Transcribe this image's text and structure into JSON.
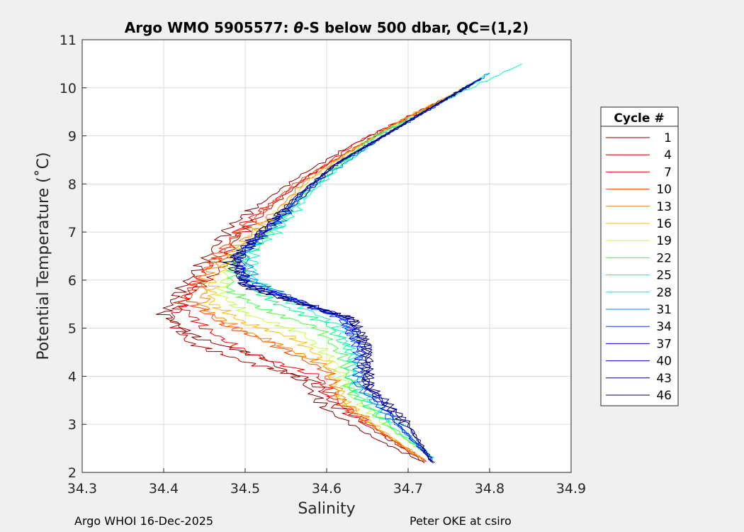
{
  "chart_data": {
    "type": "line",
    "title_prefix": "Argo WMO 5905577: ",
    "title_theta": "θ",
    "title_suffix": "-S below 500 dbar,  QC=(1,2)",
    "xlabel": "Salinity",
    "ylabel": "Potential Temperature (˚C)",
    "xlim": [
      34.3,
      34.9
    ],
    "ylim": [
      2,
      11
    ],
    "xticks": [
      "34.3",
      "34.4",
      "34.5",
      "34.6",
      "34.7",
      "34.8",
      "34.9"
    ],
    "yticks": [
      "2",
      "3",
      "4",
      "5",
      "6",
      "7",
      "8",
      "9",
      "10",
      "11"
    ],
    "grid": true,
    "legend": {
      "title": "Cycle #",
      "position": "outside-right",
      "entries": [
        "1",
        "4",
        "7",
        "10",
        "13",
        "16",
        "19",
        "22",
        "25",
        "28",
        "31",
        "34",
        "37",
        "40",
        "43",
        "46"
      ],
      "colors": [
        "#800000",
        "#bf0000",
        "#ff0000",
        "#ff4000",
        "#ff8000",
        "#ffbf00",
        "#bfff40",
        "#40ff40",
        "#00ff80",
        "#00ffbf",
        "#0080ff",
        "#0040ff",
        "#0000ff",
        "#0000bf",
        "#000080",
        "#00005a"
      ]
    },
    "series": [
      {
        "name": "1",
        "color": "#800000",
        "points": [
          [
            34.72,
            2.2
          ],
          [
            34.66,
            2.7
          ],
          [
            34.6,
            3.3
          ],
          [
            34.57,
            3.9
          ],
          [
            34.52,
            4.4
          ],
          [
            34.44,
            4.8
          ],
          [
            34.4,
            5.3
          ],
          [
            34.42,
            5.8
          ],
          [
            34.45,
            6.4
          ],
          [
            34.48,
            7.1
          ],
          [
            34.52,
            7.6
          ],
          [
            34.57,
            8.2
          ],
          [
            34.63,
            8.8
          ],
          [
            34.69,
            9.3
          ],
          [
            34.75,
            9.8
          ],
          [
            34.77,
            10.0
          ]
        ]
      },
      {
        "name": "4",
        "color": "#bf0000",
        "points": [
          [
            34.72,
            2.22
          ],
          [
            34.67,
            2.75
          ],
          [
            34.61,
            3.4
          ],
          [
            34.58,
            3.95
          ],
          [
            34.5,
            4.3
          ],
          [
            34.43,
            4.7
          ],
          [
            34.41,
            5.2
          ],
          [
            34.43,
            5.7
          ],
          [
            34.47,
            6.2
          ],
          [
            34.49,
            6.9
          ],
          [
            34.53,
            7.5
          ],
          [
            34.58,
            8.2
          ],
          [
            34.64,
            8.8
          ],
          [
            34.7,
            9.4
          ],
          [
            34.76,
            9.9
          ]
        ]
      },
      {
        "name": "7",
        "color": "#ff0000",
        "points": [
          [
            34.72,
            2.25
          ],
          [
            34.67,
            2.8
          ],
          [
            34.61,
            3.5
          ],
          [
            34.59,
            4.0
          ],
          [
            34.5,
            4.5
          ],
          [
            34.45,
            5.0
          ],
          [
            34.42,
            5.5
          ],
          [
            34.44,
            6.0
          ],
          [
            34.47,
            6.5
          ],
          [
            34.5,
            7.2
          ],
          [
            34.54,
            7.7
          ],
          [
            34.59,
            8.3
          ],
          [
            34.64,
            8.9
          ],
          [
            34.7,
            9.4
          ],
          [
            34.76,
            9.9
          ]
        ]
      },
      {
        "name": "10",
        "color": "#ff4000",
        "points": [
          [
            34.72,
            2.25
          ],
          [
            34.67,
            2.8
          ],
          [
            34.62,
            3.4
          ],
          [
            34.6,
            4.1
          ],
          [
            34.53,
            4.7
          ],
          [
            34.47,
            5.1
          ],
          [
            34.43,
            5.6
          ],
          [
            34.45,
            6.2
          ],
          [
            34.48,
            6.8
          ],
          [
            34.52,
            7.4
          ],
          [
            34.56,
            8.0
          ],
          [
            34.62,
            8.6
          ],
          [
            34.68,
            9.2
          ],
          [
            34.75,
            9.8
          ]
        ]
      },
      {
        "name": "13",
        "color": "#ff8000",
        "points": [
          [
            34.72,
            2.25
          ],
          [
            34.67,
            2.8
          ],
          [
            34.62,
            3.5
          ],
          [
            34.6,
            4.2
          ],
          [
            34.55,
            4.6
          ],
          [
            34.49,
            5.0
          ],
          [
            34.45,
            5.4
          ],
          [
            34.45,
            6.1
          ],
          [
            34.49,
            6.7
          ],
          [
            34.53,
            7.3
          ],
          [
            34.57,
            8.0
          ],
          [
            34.63,
            8.7
          ],
          [
            34.69,
            9.3
          ],
          [
            34.76,
            9.9
          ]
        ]
      },
      {
        "name": "16",
        "color": "#ffbf00",
        "points": [
          [
            34.72,
            2.25
          ],
          [
            34.67,
            2.85
          ],
          [
            34.62,
            3.5
          ],
          [
            34.6,
            4.3
          ],
          [
            34.56,
            4.8
          ],
          [
            34.5,
            5.1
          ],
          [
            34.46,
            5.5
          ],
          [
            34.46,
            6.0
          ],
          [
            34.5,
            6.8
          ],
          [
            34.54,
            7.4
          ],
          [
            34.58,
            8.1
          ],
          [
            34.64,
            8.8
          ],
          [
            34.7,
            9.4
          ],
          [
            34.77,
            10.0
          ]
        ]
      },
      {
        "name": "19",
        "color": "#bfff40",
        "points": [
          [
            34.73,
            2.3
          ],
          [
            34.68,
            2.9
          ],
          [
            34.63,
            3.6
          ],
          [
            34.61,
            4.3
          ],
          [
            34.57,
            4.9
          ],
          [
            34.5,
            5.3
          ],
          [
            34.47,
            5.7
          ],
          [
            34.48,
            6.3
          ],
          [
            34.52,
            6.9
          ],
          [
            34.55,
            7.5
          ],
          [
            34.59,
            8.1
          ],
          [
            34.65,
            8.8
          ],
          [
            34.71,
            9.4
          ],
          [
            34.78,
            10.1
          ]
        ]
      },
      {
        "name": "22",
        "color": "#40ff40",
        "points": [
          [
            34.73,
            2.3
          ],
          [
            34.68,
            2.9
          ],
          [
            34.63,
            3.7
          ],
          [
            34.62,
            4.4
          ],
          [
            34.59,
            5.0
          ],
          [
            34.52,
            5.4
          ],
          [
            34.48,
            5.8
          ],
          [
            34.49,
            6.4
          ],
          [
            34.53,
            7.0
          ],
          [
            34.56,
            7.6
          ],
          [
            34.6,
            8.2
          ],
          [
            34.65,
            8.9
          ],
          [
            34.72,
            9.5
          ],
          [
            34.79,
            10.2
          ]
        ]
      },
      {
        "name": "25",
        "color": "#00ff80",
        "points": [
          [
            34.73,
            2.3
          ],
          [
            34.68,
            2.95
          ],
          [
            34.63,
            3.7
          ],
          [
            34.63,
            4.5
          ],
          [
            34.6,
            5.1
          ],
          [
            34.54,
            5.5
          ],
          [
            34.5,
            5.9
          ],
          [
            34.5,
            6.5
          ],
          [
            34.54,
            7.1
          ],
          [
            34.57,
            7.7
          ],
          [
            34.61,
            8.3
          ],
          [
            34.66,
            9.0
          ],
          [
            34.73,
            9.6
          ],
          [
            34.8,
            10.3
          ]
        ]
      },
      {
        "name": "28",
        "color": "#00ffbf",
        "points": [
          [
            34.73,
            2.3
          ],
          [
            34.69,
            2.95
          ],
          [
            34.64,
            3.7
          ],
          [
            34.63,
            4.5
          ],
          [
            34.61,
            5.1
          ],
          [
            34.55,
            5.6
          ],
          [
            34.51,
            6.0
          ],
          [
            34.51,
            6.6
          ],
          [
            34.55,
            7.2
          ],
          [
            34.58,
            7.8
          ],
          [
            34.62,
            8.4
          ],
          [
            34.67,
            9.0
          ],
          [
            34.74,
            9.7
          ],
          [
            34.84,
            10.5
          ]
        ]
      },
      {
        "name": "31",
        "color": "#0080ff",
        "points": [
          [
            34.73,
            2.25
          ],
          [
            34.69,
            2.95
          ],
          [
            34.64,
            3.8
          ],
          [
            34.64,
            4.6
          ],
          [
            34.62,
            5.2
          ],
          [
            34.56,
            5.6
          ],
          [
            34.51,
            6.0
          ],
          [
            34.5,
            6.6
          ],
          [
            34.54,
            7.2
          ],
          [
            34.57,
            7.8
          ],
          [
            34.62,
            8.4
          ],
          [
            34.67,
            9.0
          ],
          [
            34.74,
            9.7
          ],
          [
            34.8,
            10.3
          ]
        ]
      },
      {
        "name": "34",
        "color": "#0040ff",
        "points": [
          [
            34.73,
            2.25
          ],
          [
            34.69,
            2.95
          ],
          [
            34.64,
            3.8
          ],
          [
            34.64,
            4.6
          ],
          [
            34.62,
            5.2
          ],
          [
            34.56,
            5.6
          ],
          [
            34.5,
            6.0
          ],
          [
            34.49,
            6.5
          ],
          [
            34.53,
            7.1
          ],
          [
            34.57,
            7.8
          ],
          [
            34.61,
            8.4
          ],
          [
            34.67,
            9.0
          ],
          [
            34.74,
            9.7
          ],
          [
            34.79,
            10.2
          ]
        ]
      },
      {
        "name": "37",
        "color": "#0000ff",
        "points": [
          [
            34.73,
            2.22
          ],
          [
            34.69,
            2.95
          ],
          [
            34.65,
            3.8
          ],
          [
            34.64,
            4.6
          ],
          [
            34.62,
            5.2
          ],
          [
            34.56,
            5.6
          ],
          [
            34.5,
            5.95
          ],
          [
            34.49,
            6.5
          ],
          [
            34.53,
            7.1
          ],
          [
            34.57,
            7.8
          ],
          [
            34.61,
            8.4
          ],
          [
            34.67,
            9.0
          ],
          [
            34.74,
            9.7
          ],
          [
            34.79,
            10.2
          ]
        ]
      },
      {
        "name": "40",
        "color": "#0000bf",
        "points": [
          [
            34.73,
            2.2
          ],
          [
            34.7,
            2.95
          ],
          [
            34.65,
            3.8
          ],
          [
            34.65,
            4.6
          ],
          [
            34.63,
            5.2
          ],
          [
            34.56,
            5.6
          ],
          [
            34.5,
            5.9
          ],
          [
            34.49,
            6.4
          ],
          [
            34.52,
            7.0
          ],
          [
            34.57,
            7.7
          ],
          [
            34.61,
            8.4
          ],
          [
            34.67,
            9.0
          ],
          [
            34.74,
            9.7
          ],
          [
            34.79,
            10.2
          ]
        ]
      },
      {
        "name": "43",
        "color": "#000080",
        "points": [
          [
            34.73,
            2.2
          ],
          [
            34.7,
            3.0
          ],
          [
            34.65,
            3.8
          ],
          [
            34.65,
            4.6
          ],
          [
            34.63,
            5.2
          ],
          [
            34.56,
            5.55
          ],
          [
            34.5,
            5.9
          ],
          [
            34.49,
            6.4
          ],
          [
            34.52,
            7.0
          ],
          [
            34.56,
            7.7
          ],
          [
            34.61,
            8.4
          ],
          [
            34.67,
            9.0
          ],
          [
            34.74,
            9.7
          ],
          [
            34.78,
            10.1
          ]
        ]
      },
      {
        "name": "46",
        "color": "#00005a",
        "points": [
          [
            34.73,
            2.2
          ],
          [
            34.7,
            3.0
          ],
          [
            34.65,
            3.8
          ],
          [
            34.65,
            4.6
          ],
          [
            34.63,
            5.2
          ],
          [
            34.56,
            5.55
          ],
          [
            34.5,
            5.85
          ],
          [
            34.48,
            6.4
          ],
          [
            34.52,
            7.0
          ],
          [
            34.56,
            7.7
          ],
          [
            34.61,
            8.4
          ],
          [
            34.67,
            9.0
          ],
          [
            34.74,
            9.7
          ],
          [
            34.78,
            10.1
          ]
        ]
      }
    ]
  },
  "footer": {
    "left": "Argo WHOI 16-Dec-2025",
    "right": "Peter OKE at csiro"
  }
}
